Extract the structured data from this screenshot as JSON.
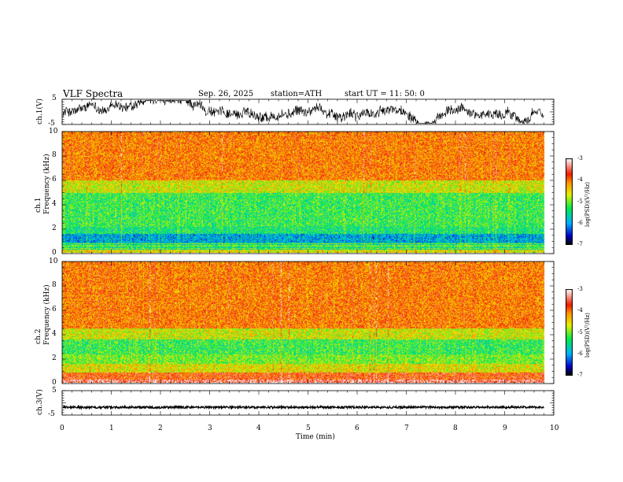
{
  "header": {
    "title": "VLF  Spectra",
    "date": "Sep. 26, 2025",
    "station": "station=ATH",
    "start_ut": "start  UT  =    11: 50: 0"
  },
  "chart_data": [
    {
      "type": "line",
      "panel": "ch1-waveform",
      "ylabel": "ch.1(V)",
      "ylim": [
        -5,
        5
      ],
      "xlim": [
        0,
        10
      ],
      "y_tick_labels": [
        "5",
        "-5"
      ],
      "data_extent_x_max": 9.8,
      "description_values": {
        "mean": 0,
        "amplitude_approx": 2.2
      }
    },
    {
      "type": "heatmap",
      "panel": "ch1-spectrogram",
      "ylabel_lines": [
        "ch.1",
        "Frequency  (kHz)"
      ],
      "ylim": [
        0,
        10
      ],
      "xlim": [
        0,
        10
      ],
      "y_ticks": [
        "0",
        "2",
        "4",
        "6",
        "8",
        "10"
      ],
      "colorbar": {
        "label": "log(PSD)(V²/Hz)",
        "range": [
          -7,
          -3
        ],
        "ticks": [
          "-3",
          "-4",
          "-5",
          "-6",
          "-7"
        ]
      }
    },
    {
      "type": "heatmap",
      "panel": "ch2-spectrogram",
      "ylabel_lines": [
        "ch.2",
        "Frequency  (kHz)"
      ],
      "ylim": [
        0,
        10
      ],
      "xlim": [
        0,
        10
      ],
      "y_ticks": [
        "0",
        "2",
        "4",
        "6",
        "8",
        "10"
      ],
      "colorbar": {
        "label": "log(PSD)(V²/Hz)",
        "range": [
          -7,
          -3
        ],
        "ticks": [
          "-3",
          "-4",
          "-5",
          "-6",
          "-7"
        ]
      }
    },
    {
      "type": "line",
      "panel": "ch3-waveform",
      "ylabel": "ch.3(V)",
      "ylim": [
        -5,
        5
      ],
      "xlim": [
        0,
        10
      ],
      "y_tick_labels": [
        "5",
        "-5"
      ],
      "level_approx": -1.8
    }
  ],
  "x_axis": {
    "label": "Time  (min)",
    "ticks": [
      "0",
      "1",
      "2",
      "3",
      "4",
      "5",
      "6",
      "7",
      "8",
      "9",
      "10"
    ]
  }
}
